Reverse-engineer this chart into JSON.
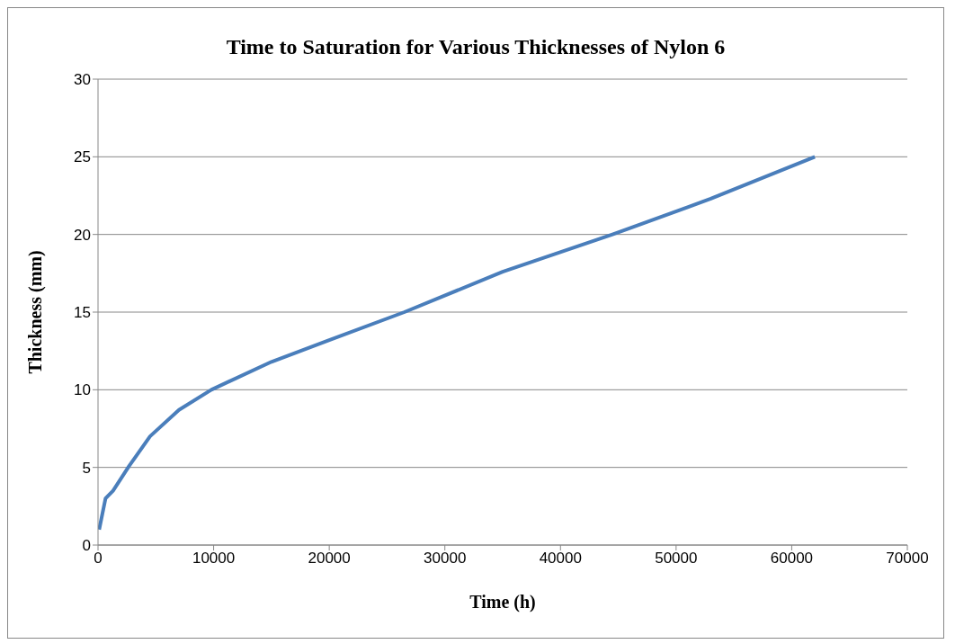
{
  "chart_data": {
    "type": "line",
    "title": "Time to Saturation for Various Thicknesses of Nylon 6",
    "xlabel": "Time (h)",
    "ylabel": "Thickness (mm)",
    "x": [
      100,
      650,
      1300,
      2700,
      4500,
      7000,
      9800,
      15000,
      20000,
      26500,
      35000,
      44500,
      53000,
      62000
    ],
    "series": [
      {
        "color": "#4a7ebb",
        "values": [
          1,
          3,
          3.5,
          5.1,
          7,
          8.7,
          10,
          11.8,
          13.2,
          15,
          17.6,
          20,
          22.3,
          25
        ]
      }
    ],
    "xlim": [
      0,
      70000
    ],
    "xticks": [
      0,
      10000,
      20000,
      30000,
      40000,
      50000,
      60000,
      70000
    ],
    "ylim": [
      0,
      30
    ],
    "yticks": [
      0,
      5,
      10,
      15,
      20,
      25,
      30
    ],
    "grid": "y",
    "legend": false,
    "marker": "none",
    "line_style": "solid"
  }
}
